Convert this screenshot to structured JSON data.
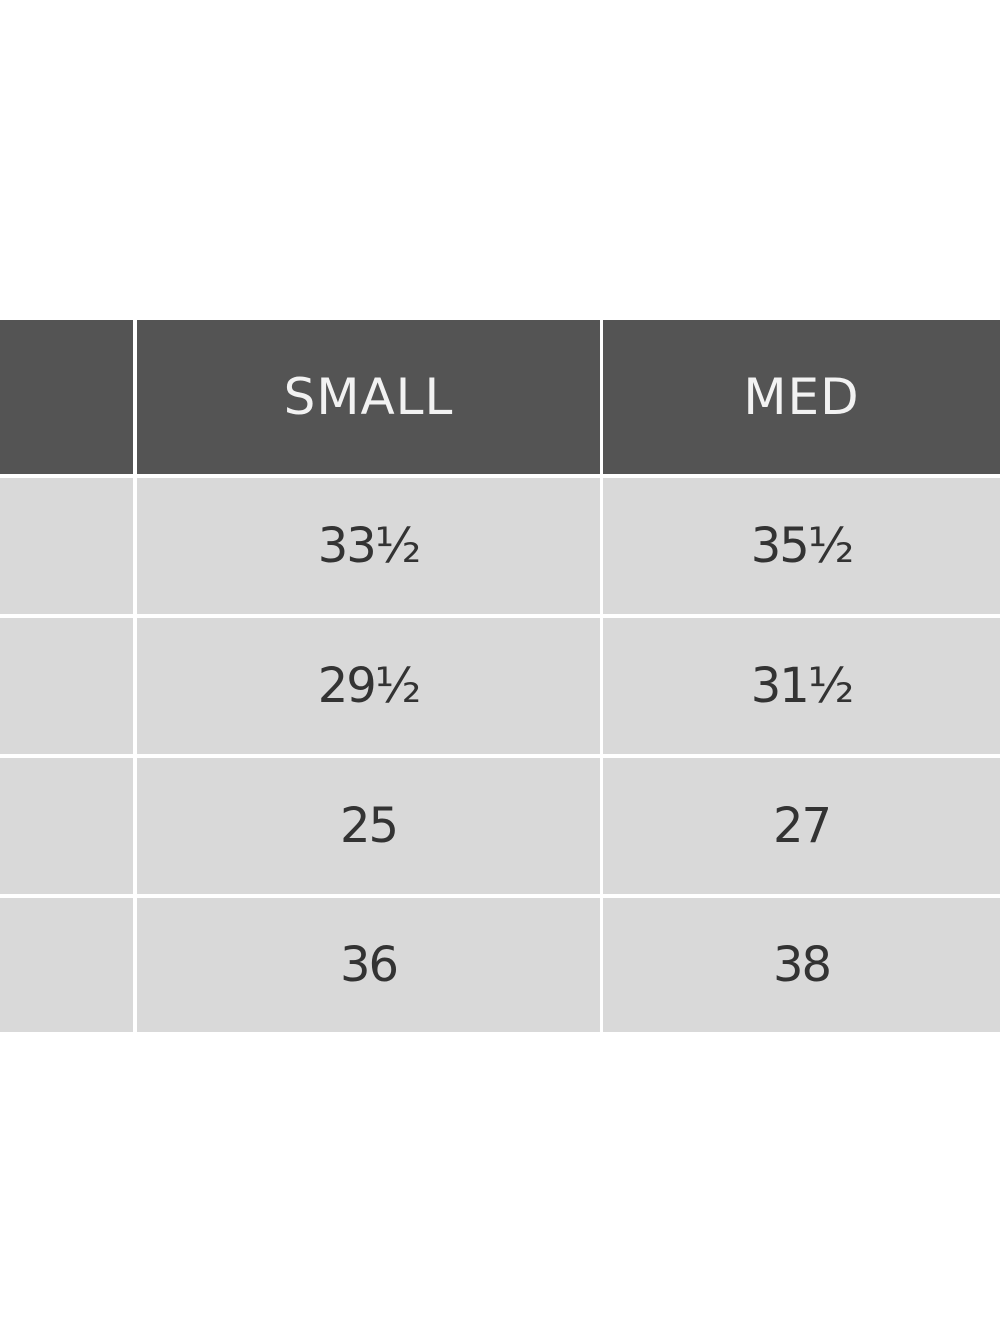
{
  "table": {
    "header": [
      "SMALL",
      "MED"
    ],
    "rows": [
      [
        "33½",
        "35½"
      ],
      [
        "29½",
        "31½"
      ],
      [
        "25",
        "27"
      ],
      [
        "36",
        "38"
      ]
    ]
  }
}
